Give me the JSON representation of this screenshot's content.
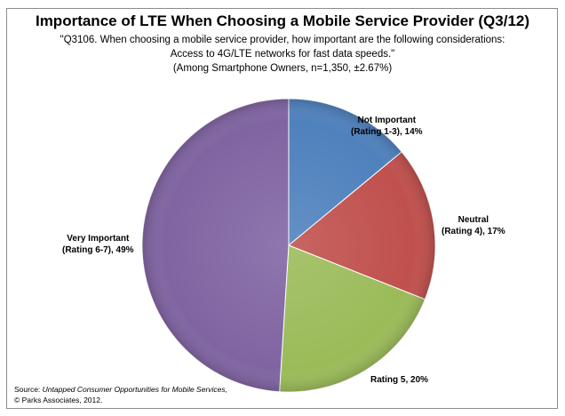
{
  "chart_data": {
    "type": "pie",
    "title": "Importance of LTE When Choosing a Mobile Service Provider (Q3/12)",
    "subtitle_lines": [
      "\"Q3106. When choosing a mobile service provider, how important are the following considerations:",
      "Access to 4G/LTE networks for fast data speeds.\"",
      "(Among Smartphone Owners, n=1,350,  ±2.67%)"
    ],
    "slices": [
      {
        "label_lines": [
          "Not Important",
          "(Rating 1-3), 14%"
        ],
        "value": 14,
        "color": "#4F81BD"
      },
      {
        "label_lines": [
          "Neutral",
          "(Rating 4), 17%"
        ],
        "value": 17,
        "color": "#C0504D"
      },
      {
        "label_lines": [
          "Rating 5, 20%"
        ],
        "value": 20,
        "color": "#9BBB59"
      },
      {
        "label_lines": [
          "Very Important",
          "(Rating 6-7), 49%"
        ],
        "value": 49,
        "color": "#8064A2"
      }
    ],
    "start": "top",
    "direction": "clockwise"
  },
  "source": {
    "prefix": "Source: ",
    "title": "Untapped Consumer Opportunities for Mobile Services,",
    "line2": "© Parks Associates, 2012."
  }
}
